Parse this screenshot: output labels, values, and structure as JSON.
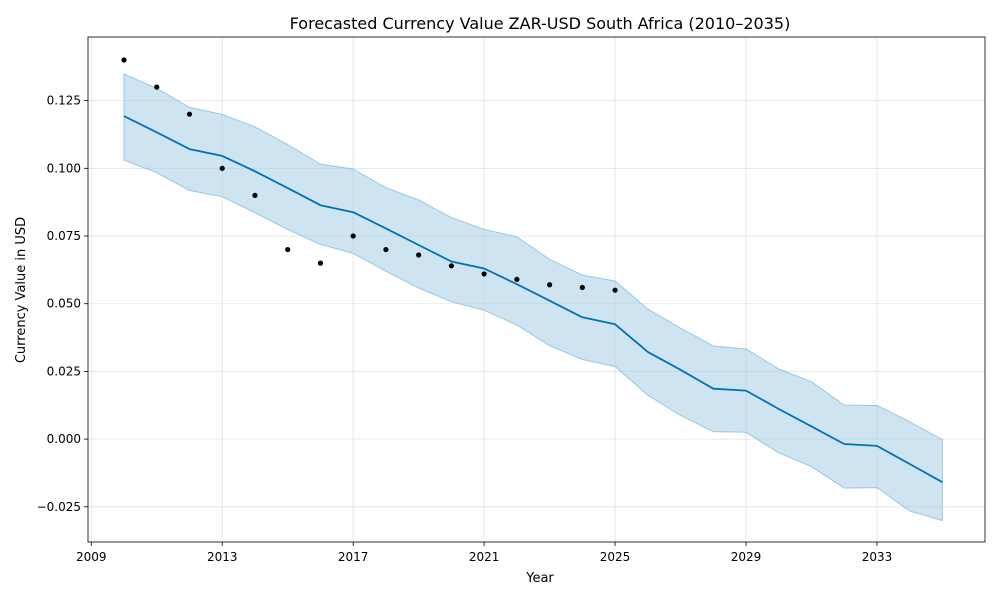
{
  "chart_data": {
    "type": "line",
    "title": "Forecasted Currency Value ZAR-USD  South Africa (2010–2035)",
    "xlabel": "Year",
    "ylabel": "Currency Value in USD",
    "xlim": [
      2008.9,
      2036.3
    ],
    "ylim": [
      -0.038,
      0.1485
    ],
    "x_ticks": [
      2009,
      2013,
      2017,
      2021,
      2025,
      2029,
      2033
    ],
    "y_ticks": [
      -0.025,
      0.0,
      0.025,
      0.05,
      0.075,
      0.1,
      0.125
    ],
    "y_tick_labels": [
      "−0.025",
      "0.000",
      "0.025",
      "0.050",
      "0.075",
      "0.100",
      "0.125"
    ],
    "grid": true,
    "colors": {
      "line": "#0072b2",
      "band_fill": "#9ecae1",
      "band_edge": "#6baed6",
      "points": "#000000"
    },
    "series": [
      {
        "kind": "observed-points",
        "x": [
          2010,
          2011,
          2012,
          2013,
          2014,
          2015,
          2016,
          2017,
          2018,
          2019,
          2020,
          2021,
          2022,
          2023,
          2024,
          2025
        ],
        "y": [
          0.14,
          0.13,
          0.12,
          0.1,
          0.09,
          0.07,
          0.065,
          0.075,
          0.07,
          0.068,
          0.064,
          0.061,
          0.059,
          0.057,
          0.056,
          0.055
        ]
      },
      {
        "kind": "forecast-line",
        "x": [
          2010,
          2011,
          2012,
          2013,
          2014,
          2015,
          2016,
          2017,
          2018,
          2019,
          2020,
          2021,
          2022,
          2023,
          2024,
          2025,
          2026,
          2027,
          2028,
          2029,
          2030,
          2031,
          2032,
          2033,
          2034,
          2035
        ],
        "y": [
          0.1193,
          0.1133,
          0.1071,
          0.1046,
          0.0989,
          0.0927,
          0.0864,
          0.0838,
          0.0778,
          0.0717,
          0.0656,
          0.063,
          0.0572,
          0.0511,
          0.045,
          0.0424,
          0.0322,
          0.0256,
          0.0186,
          0.0179,
          0.0111,
          0.0047,
          -0.0018,
          -0.0025,
          -0.0092,
          -0.0159
        ]
      },
      {
        "kind": "uncertainty-band",
        "x": [
          2010,
          2011,
          2012,
          2013,
          2014,
          2015,
          2016,
          2017,
          2018,
          2019,
          2020,
          2021,
          2022,
          2023,
          2024,
          2025,
          2026,
          2027,
          2028,
          2029,
          2030,
          2031,
          2032,
          2033,
          2034,
          2035
        ],
        "upper": [
          0.1348,
          0.1296,
          0.1225,
          0.1199,
          0.1153,
          0.1088,
          0.1016,
          0.0997,
          0.0929,
          0.0883,
          0.0818,
          0.0775,
          0.0747,
          0.0664,
          0.0606,
          0.0584,
          0.048,
          0.041,
          0.0344,
          0.0333,
          0.0259,
          0.0212,
          0.0126,
          0.0124,
          0.0064,
          -0.0002
        ],
        "lower": [
          0.103,
          0.0984,
          0.0918,
          0.0895,
          0.0836,
          0.0774,
          0.0719,
          0.0686,
          0.062,
          0.0558,
          0.0507,
          0.0476,
          0.0421,
          0.0345,
          0.0294,
          0.0268,
          0.0162,
          0.0087,
          0.0027,
          0.0025,
          -0.0051,
          -0.0102,
          -0.0181,
          -0.0179,
          -0.0266,
          -0.0301
        ]
      }
    ]
  }
}
